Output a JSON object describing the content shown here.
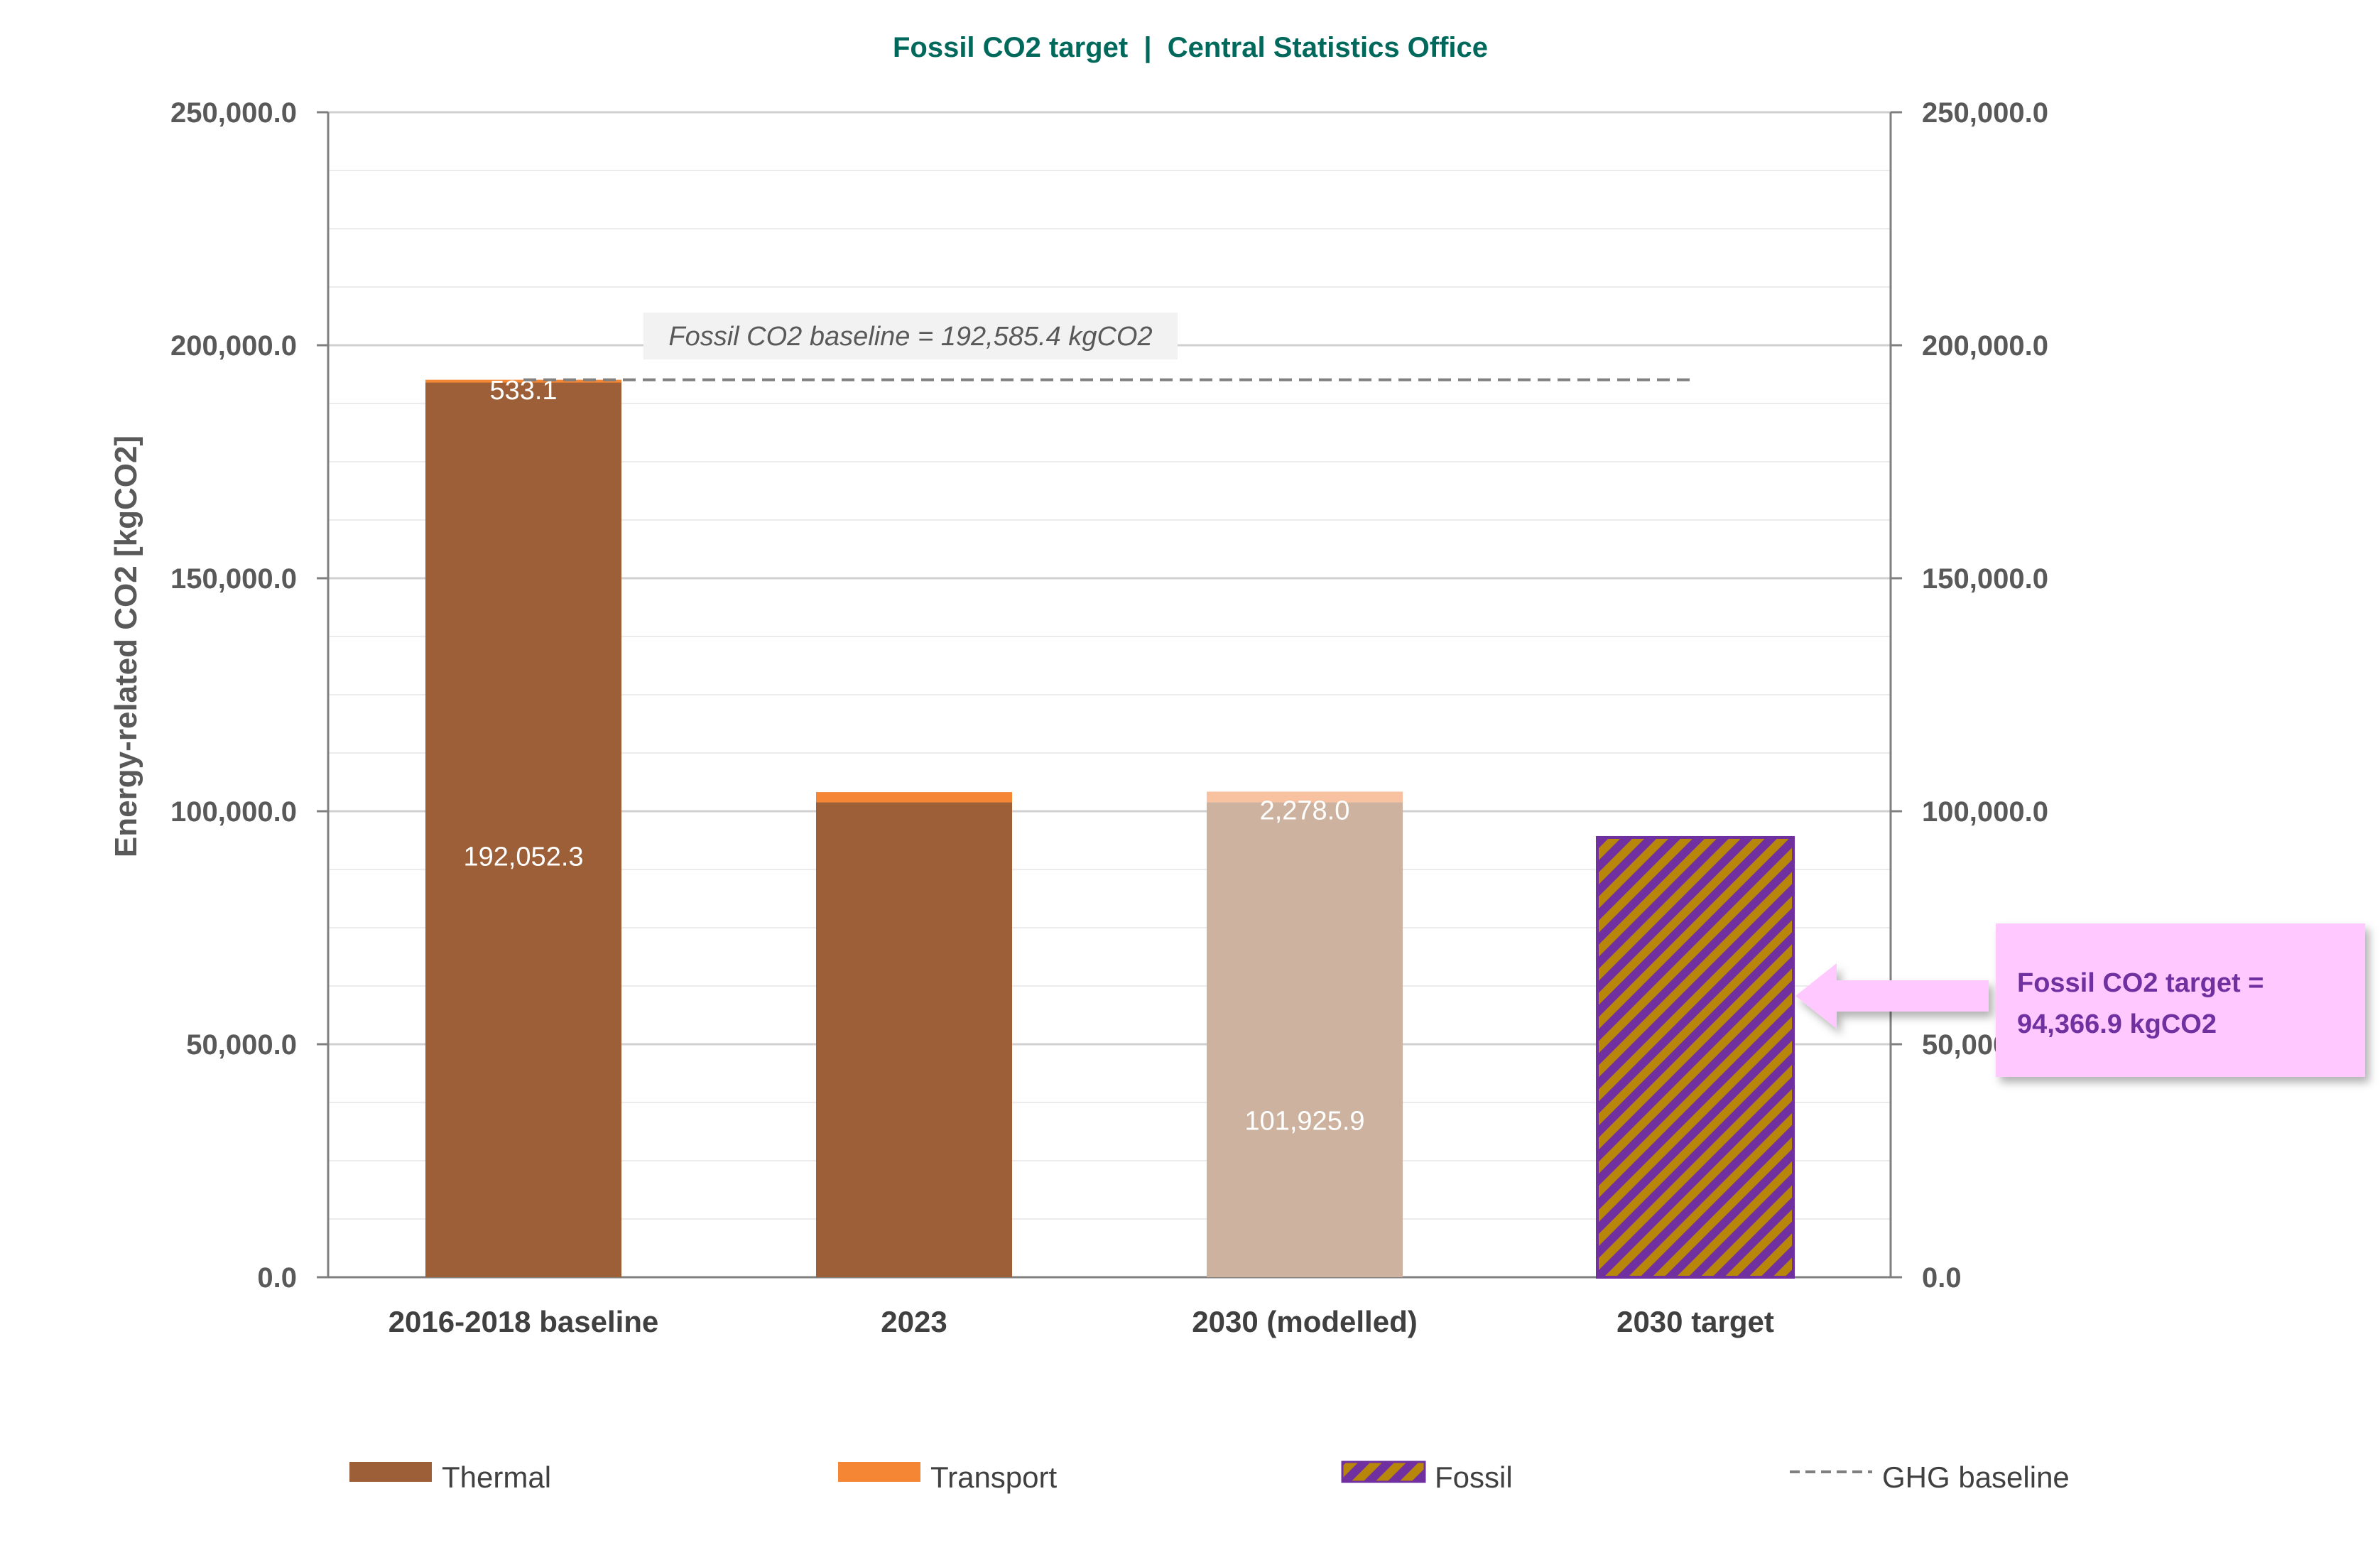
{
  "title": "Fossil CO2 target  |  Central Statistics Office",
  "colors": {
    "title": "#00695C",
    "thermal": "#9C5F38",
    "transport": "#F58634",
    "thermal_modelled": "#CDB39F",
    "transport_modelled": "#F8C1A0",
    "fossil_fill": "#B8860B",
    "fossil_stripe": "#7030A0",
    "baseline": "#808080",
    "callout_bg": "#FFC8FF",
    "callout_text": "#7030A0",
    "arrow": "#FFC8FF"
  },
  "chart_data": {
    "type": "bar",
    "stacked": true,
    "categories": [
      "2016-2018 baseline",
      "2023",
      "2030 (modelled)",
      "2030 target"
    ],
    "series": [
      {
        "name": "Thermal",
        "values": [
          192052.3,
          101900,
          101925.9,
          null
        ],
        "labels": [
          "192,052.3",
          "",
          "101,925.9",
          ""
        ]
      },
      {
        "name": "Transport",
        "values": [
          533.1,
          2200,
          2278.0,
          null
        ],
        "labels": [
          "533.1",
          "",
          "2,278.0",
          ""
        ]
      },
      {
        "name": "Fossil",
        "values": [
          null,
          null,
          null,
          94366.9
        ],
        "labels": [
          "",
          "",
          "",
          ""
        ]
      }
    ],
    "baseline": {
      "name": "GHG baseline",
      "value": 192585.4,
      "label": "Fossil CO2 baseline = 192,585.4 kgCO2"
    },
    "ylabel": "Energy-related CO2 [kgCO2]",
    "xlabel": "",
    "ylim": [
      0,
      250000
    ],
    "yticks": [
      "0.0",
      "50,000.0",
      "100,000.0",
      "150,000.0",
      "200,000.0",
      "250,000.0"
    ],
    "ytick_values": [
      0,
      50000,
      100000,
      150000,
      200000,
      250000
    ],
    "secondary_axis": true,
    "grid": true,
    "legend_position": "bottom",
    "legend": [
      "Thermal",
      "Transport",
      "Fossil",
      "GHG baseline"
    ],
    "callout": {
      "line1": "Fossil CO2 target =",
      "line2": "94,366.9 kgCO2"
    }
  }
}
